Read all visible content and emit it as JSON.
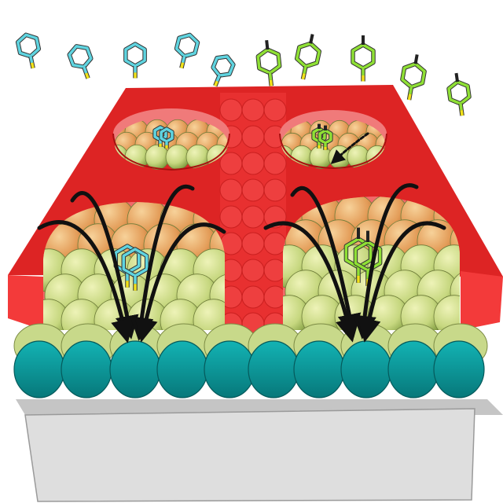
{
  "colors": {
    "background": "#ffffff",
    "substrate_top": "#c9c9c9",
    "substrate_front": "#dcdcdc",
    "substrate_edge": "#9a9a9a",
    "teal_sphere": "#0a9a9c",
    "teal_rim": "#c8d98a",
    "sam_sphere_light": "#d9e59b",
    "sam_sphere_dark": "#8aa34a",
    "sam_sphere_orange": "#e0a060",
    "mask_top": "#dd2020",
    "mask_side": "#f03a3a",
    "mask_edge": "#a81010",
    "cyan_molecule": "#5fd4e0",
    "green_molecule": "#8fe035",
    "sulfur": "#f2e21a",
    "methyl": "#111111",
    "arrow": "#111111"
  },
  "molecules": {
    "cyan_label": "benzenethiol",
    "green_label": "4-methylbenzenethiol",
    "cyan_count_free": 5,
    "green_count_free": 5
  },
  "wells": [
    {
      "name": "well-back-left",
      "molecule": "cyan"
    },
    {
      "name": "well-back-right",
      "molecule": "green"
    },
    {
      "name": "well-front-left",
      "molecule": "cyan"
    },
    {
      "name": "well-front-right",
      "molecule": "green"
    }
  ],
  "arrows": {
    "front_left_count": 4,
    "front_right_count": 4,
    "dashed_count": 1
  }
}
